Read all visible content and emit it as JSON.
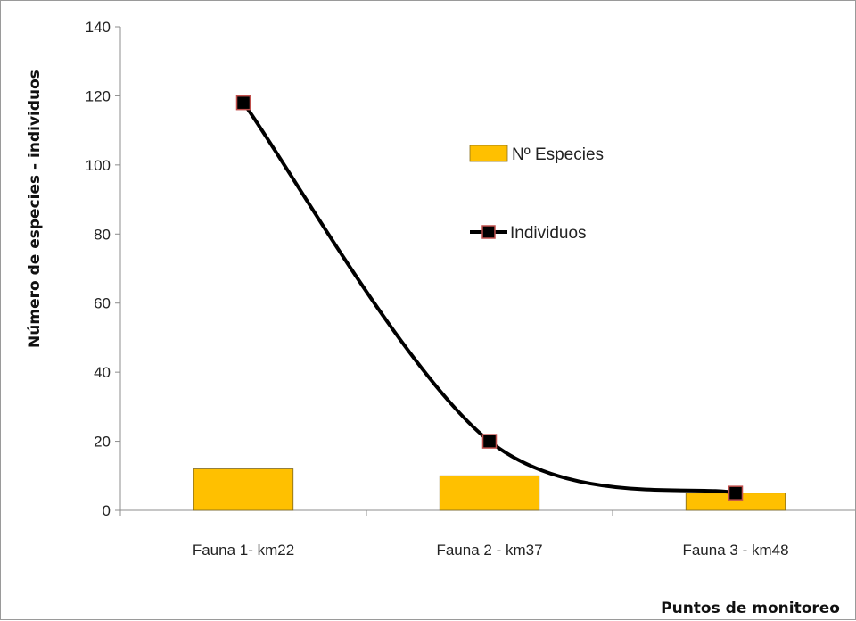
{
  "chart_data": {
    "type": "bar",
    "categories": [
      "Fauna 1- km22",
      "Fauna 2 - km37",
      "Fauna 3 - km48"
    ],
    "series": [
      {
        "name": "Nº  Especies",
        "type": "bar",
        "values": [
          12,
          10,
          5
        ],
        "color": "#FFC000"
      },
      {
        "name": "Individuos",
        "type": "line",
        "smooth": true,
        "values": [
          118,
          20,
          5
        ],
        "color": "#000000",
        "marker_color": "#000000",
        "marker_edge_color": "#C0504D"
      }
    ],
    "xlabel": "Puntos  de monitoreo",
    "ylabel": "Número  de  especies - individuos",
    "ylim": [
      0,
      140
    ],
    "yticks": [
      0,
      20,
      40,
      60,
      80,
      100,
      120,
      140
    ],
    "grid": false,
    "legend_position": "right"
  }
}
